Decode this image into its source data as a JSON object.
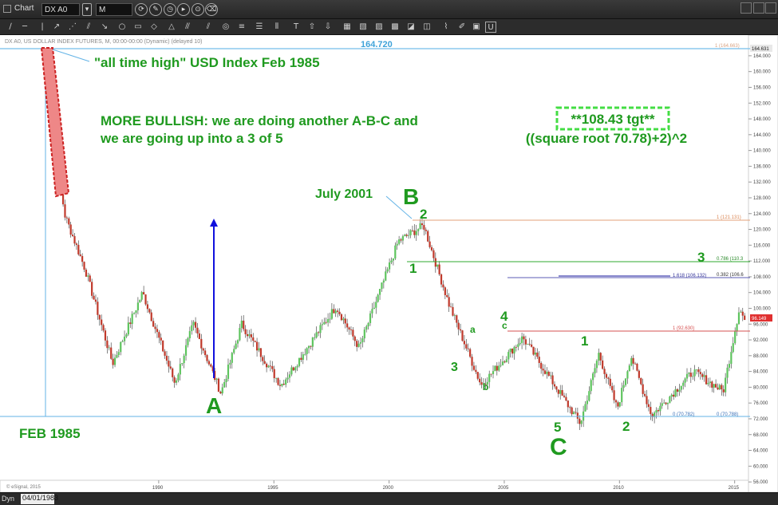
{
  "window": {
    "title": "Chart",
    "symbol": "DX A0",
    "interval": "M"
  },
  "chart_header": "DX A0, US DOLLAR INDEX FUTURES, M, 00:00-00:00 (Dynamic) (delayed 10)",
  "copyright": "© eSignal, 2015",
  "status": {
    "tab": "Dyn",
    "date": "04/01/1983"
  },
  "colors": {
    "green": "#1f9a1f",
    "price_line": "#63b3e6",
    "blue_arrow": "#1111dd",
    "fib_orange": "#e3a07a",
    "fib_green": "#2fa82f",
    "fib_purple": "#5b5bb5",
    "fib_red": "#d65050",
    "highlight_red": "#ee8787"
  },
  "annotations": {
    "ath_label": "\"all time high\" USD Index Feb 1985",
    "bullish_line1": "MORE BULLISH: we are doing another A-B-C and",
    "bullish_line2": "we are going up into a 3 of 5",
    "target_box": "**108.43 tgt**",
    "target_formula": "((square root 70.78)+2)^2",
    "july_label": "July 2001",
    "feb_label": "FEB 1985",
    "peak_value": "164.720"
  },
  "wave_labels": {
    "A": "A",
    "B": "B",
    "C": "C",
    "b2": "2",
    "b1": "1",
    "w3": "3",
    "w3_small": "3",
    "a_small": "a",
    "b_small": "b",
    "c_small": "c",
    "w4": "4",
    "w5": "5",
    "w1_right": "1",
    "w2_right": "2"
  },
  "fib_labels": {
    "f1": "1 (121.131)",
    "f0786": "0.786 (110.3",
    "f1618": "1.618 (106.132)",
    "f0382": "0.382 (106.6",
    "f1_red": "1 (92.630)",
    "f0a": "0 (70.782)",
    "f0b": "0 (70.788)",
    "f_top": "1 (164.663)"
  },
  "price_badges": {
    "top": "164.631",
    "current": "96.149"
  },
  "chart_data": {
    "type": "candlestick",
    "x_ticks": [
      "1990",
      "1995",
      "2000",
      "2005",
      "2010",
      "2015"
    ],
    "y_ticks": [
      "164.000",
      "160.000",
      "156.000",
      "152.000",
      "148.000",
      "144.000",
      "140.000",
      "136.000",
      "132.000",
      "128.000",
      "124.000",
      "120.000",
      "116.000",
      "112.000",
      "108.000",
      "104.000",
      "100.000",
      "96.000",
      "92.000",
      "88.000",
      "84.000",
      "80.000",
      "76.000",
      "72.000",
      "68.000",
      "64.000",
      "60.000",
      "56.000"
    ],
    "ylim": [
      54,
      166
    ],
    "xlim": [
      1983.25,
      2015.6
    ],
    "key_points": [
      {
        "date": 1985.1,
        "value": 164.72,
        "label": "ATH"
      },
      {
        "date": 1985.9,
        "value": 124.0
      },
      {
        "date": 1986.8,
        "value": 110.0
      },
      {
        "date": 1988.0,
        "value": 86.0
      },
      {
        "date": 1989.3,
        "value": 104.0
      },
      {
        "date": 1990.7,
        "value": 81.0
      },
      {
        "date": 1991.5,
        "value": 96.0
      },
      {
        "date": 1992.7,
        "value": 78.5,
        "label": "A"
      },
      {
        "date": 1993.6,
        "value": 96.0
      },
      {
        "date": 1995.3,
        "value": 80.5
      },
      {
        "date": 1997.7,
        "value": 100.5
      },
      {
        "date": 1998.7,
        "value": 90.0
      },
      {
        "date": 2000.4,
        "value": 117.0
      },
      {
        "date": 2001.5,
        "value": 121.0,
        "label": "B"
      },
      {
        "date": 2002.6,
        "value": 101.0
      },
      {
        "date": 2004.0,
        "value": 80.5
      },
      {
        "date": 2005.8,
        "value": 92.6
      },
      {
        "date": 2008.3,
        "value": 70.78,
        "label": "C"
      },
      {
        "date": 2009.1,
        "value": 88.5
      },
      {
        "date": 2009.9,
        "value": 74.5
      },
      {
        "date": 2010.5,
        "value": 88.0
      },
      {
        "date": 2011.4,
        "value": 72.8
      },
      {
        "date": 2013.2,
        "value": 84.0
      },
      {
        "date": 2014.5,
        "value": 79.0
      },
      {
        "date": 2015.2,
        "value": 100.0
      },
      {
        "date": 2015.5,
        "value": 96.15
      }
    ]
  }
}
